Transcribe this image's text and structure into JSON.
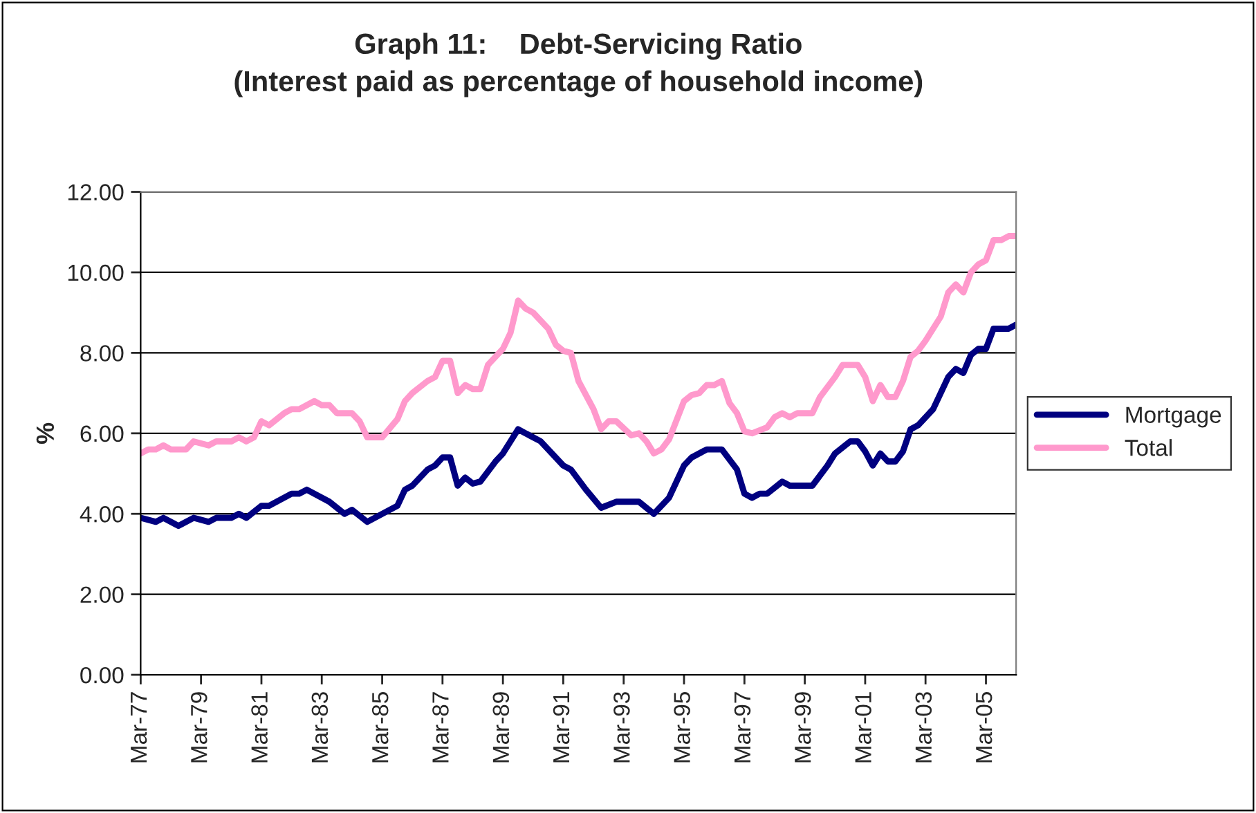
{
  "chart_data": {
    "type": "line",
    "title": "Graph 11:    Debt-Servicing Ratio\n(Interest paid as percentage of household income)",
    "ylabel": "%",
    "ylim": [
      0,
      12
    ],
    "yticks": [
      {
        "value": 0,
        "label": "0.00"
      },
      {
        "value": 2,
        "label": "2.00"
      },
      {
        "value": 4,
        "label": "4.00"
      },
      {
        "value": 6,
        "label": "6.00"
      },
      {
        "value": 8,
        "label": "8.00"
      },
      {
        "value": 10,
        "label": "10.00"
      },
      {
        "value": 12,
        "label": "12.00"
      }
    ],
    "xlim": [
      "1977-03",
      "2006-03"
    ],
    "xticks": [
      {
        "value": "1977-03",
        "label": "Mar-77"
      },
      {
        "value": "1979-03",
        "label": "Mar-79"
      },
      {
        "value": "1981-03",
        "label": "Mar-81"
      },
      {
        "value": "1983-03",
        "label": "Mar-83"
      },
      {
        "value": "1985-03",
        "label": "Mar-85"
      },
      {
        "value": "1987-03",
        "label": "Mar-87"
      },
      {
        "value": "1989-03",
        "label": "Mar-89"
      },
      {
        "value": "1991-03",
        "label": "Mar-91"
      },
      {
        "value": "1993-03",
        "label": "Mar-93"
      },
      {
        "value": "1995-03",
        "label": "Mar-95"
      },
      {
        "value": "1997-03",
        "label": "Mar-97"
      },
      {
        "value": "1999-03",
        "label": "Mar-99"
      },
      {
        "value": "2001-03",
        "label": "Mar-01"
      },
      {
        "value": "2003-03",
        "label": "Mar-03"
      },
      {
        "value": "2005-03",
        "label": "Mar-05"
      }
    ],
    "grid": "y",
    "legend": "right",
    "marker": "none",
    "line_style": "solid",
    "series": [
      {
        "name": "Mortgage",
        "color": "#000080",
        "x": [
          "1977-03",
          "1977-09",
          "1977-12",
          "1978-06",
          "1978-12",
          "1979-06",
          "1979-09",
          "1980-03",
          "1980-06",
          "1980-09",
          "1981-03",
          "1981-06",
          "1982-03",
          "1982-06",
          "1982-09",
          "1983-06",
          "1983-12",
          "1984-03",
          "1984-09",
          "1985-09",
          "1985-12",
          "1986-03",
          "1986-09",
          "1986-12",
          "1987-03",
          "1987-06",
          "1987-09",
          "1987-12",
          "1988-03",
          "1988-06",
          "1988-12",
          "1989-03",
          "1989-09",
          "1990-06",
          "1991-03",
          "1991-06",
          "1991-12",
          "1992-06",
          "1992-12",
          "1993-09",
          "1994-03",
          "1994-09",
          "1995-03",
          "1995-06",
          "1995-12",
          "1996-06",
          "1996-12",
          "1997-03",
          "1997-06",
          "1997-09",
          "1997-12",
          "1998-06",
          "1998-09",
          "1999-06",
          "1999-12",
          "2000-03",
          "2000-09",
          "2000-12",
          "2001-03",
          "2001-06",
          "2001-09",
          "2001-12",
          "2002-03",
          "2002-06",
          "2002-09",
          "2002-12",
          "2003-06",
          "2003-12",
          "2004-03",
          "2004-06",
          "2004-09",
          "2004-12",
          "2005-03",
          "2005-06",
          "2005-12",
          "2006-03"
        ],
        "values": [
          3.9,
          3.8,
          3.9,
          3.7,
          3.9,
          3.8,
          3.9,
          3.9,
          4.0,
          3.9,
          4.2,
          4.2,
          4.5,
          4.5,
          4.6,
          4.3,
          4.0,
          4.1,
          3.8,
          4.2,
          4.6,
          4.7,
          5.1,
          5.2,
          5.4,
          5.4,
          4.7,
          4.9,
          4.75,
          4.8,
          5.3,
          5.5,
          6.1,
          5.8,
          5.2,
          5.1,
          4.6,
          4.15,
          4.3,
          4.3,
          4.0,
          4.4,
          5.2,
          5.4,
          5.6,
          5.6,
          5.1,
          4.5,
          4.4,
          4.5,
          4.5,
          4.8,
          4.7,
          4.7,
          5.2,
          5.5,
          5.8,
          5.8,
          5.55,
          5.2,
          5.5,
          5.3,
          5.3,
          5.55,
          6.1,
          6.2,
          6.6,
          7.4,
          7.6,
          7.5,
          7.95,
          8.1,
          8.1,
          8.6,
          8.6,
          8.7
        ]
      },
      {
        "name": "Total",
        "color": "#ff99cc",
        "x": [
          "1977-03",
          "1977-06",
          "1977-09",
          "1977-12",
          "1978-03",
          "1978-09",
          "1978-12",
          "1979-06",
          "1979-09",
          "1980-03",
          "1980-06",
          "1980-09",
          "1980-12",
          "1981-03",
          "1981-06",
          "1981-12",
          "1982-03",
          "1982-06",
          "1982-12",
          "1983-03",
          "1983-06",
          "1983-09",
          "1984-03",
          "1984-06",
          "1984-09",
          "1985-03",
          "1985-09",
          "1985-12",
          "1986-03",
          "1986-09",
          "1986-12",
          "1987-03",
          "1987-06",
          "1987-09",
          "1987-12",
          "1988-03",
          "1988-06",
          "1988-09",
          "1989-03",
          "1989-06",
          "1989-09",
          "1989-12",
          "1990-03",
          "1990-09",
          "1990-12",
          "1991-03",
          "1991-06",
          "1991-09",
          "1992-03",
          "1992-06",
          "1992-09",
          "1992-12",
          "1993-06",
          "1993-09",
          "1993-12",
          "1994-03",
          "1994-06",
          "1994-09",
          "1995-03",
          "1995-06",
          "1995-09",
          "1995-12",
          "1996-03",
          "1996-06",
          "1996-09",
          "1996-12",
          "1997-03",
          "1997-06",
          "1997-12",
          "1998-03",
          "1998-06",
          "1998-09",
          "1998-12",
          "1999-06",
          "1999-09",
          "2000-03",
          "2000-06",
          "2000-12",
          "2001-03",
          "2001-06",
          "2001-09",
          "2001-12",
          "2002-03",
          "2002-06",
          "2002-09",
          "2002-12",
          "2003-03",
          "2003-09",
          "2003-12",
          "2004-03",
          "2004-06",
          "2004-09",
          "2004-12",
          "2005-03",
          "2005-06",
          "2005-09",
          "2005-12",
          "2006-03"
        ],
        "values": [
          5.5,
          5.6,
          5.6,
          5.7,
          5.6,
          5.6,
          5.8,
          5.7,
          5.8,
          5.8,
          5.9,
          5.8,
          5.9,
          6.3,
          6.2,
          6.5,
          6.6,
          6.6,
          6.8,
          6.7,
          6.7,
          6.5,
          6.5,
          6.3,
          5.9,
          5.9,
          6.35,
          6.8,
          7.0,
          7.3,
          7.4,
          7.8,
          7.8,
          7.0,
          7.2,
          7.1,
          7.1,
          7.7,
          8.1,
          8.5,
          9.3,
          9.1,
          9.0,
          8.6,
          8.2,
          8.05,
          8.0,
          7.3,
          6.6,
          6.1,
          6.3,
          6.3,
          5.95,
          6.0,
          5.8,
          5.5,
          5.6,
          5.85,
          6.8,
          6.95,
          7.0,
          7.2,
          7.2,
          7.3,
          6.75,
          6.5,
          6.05,
          6.0,
          6.15,
          6.4,
          6.5,
          6.4,
          6.5,
          6.5,
          6.9,
          7.4,
          7.7,
          7.7,
          7.4,
          6.8,
          7.2,
          6.9,
          6.9,
          7.3,
          7.9,
          8.05,
          8.3,
          8.9,
          9.5,
          9.7,
          9.5,
          10.0,
          10.2,
          10.3,
          10.8,
          10.8,
          10.9,
          10.9
        ]
      }
    ]
  }
}
